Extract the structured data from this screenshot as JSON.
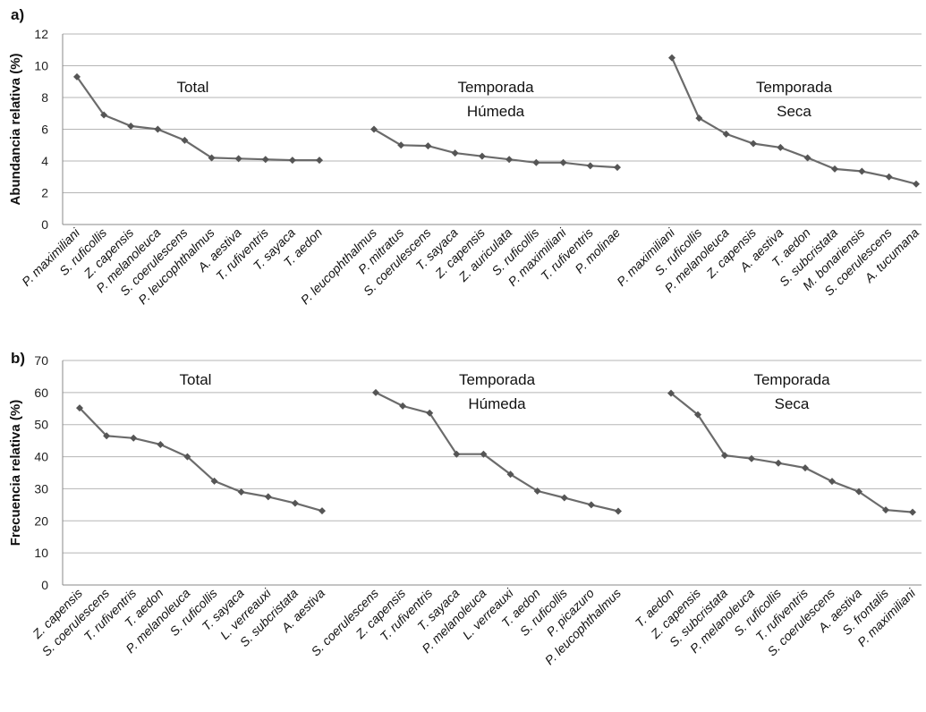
{
  "chart_data": [
    {
      "type": "line",
      "panel_letter": "a)",
      "ylabel": "Abundancia relativa (%)",
      "ylim": [
        0,
        12
      ],
      "yticks": [
        0,
        2,
        4,
        6,
        8,
        10,
        12
      ],
      "grid": true,
      "groups": [
        {
          "title_lines": [
            "Total"
          ],
          "categories": [
            "P. maximiliani",
            "S. ruficollis",
            "Z. capensis",
            "P. melanoleuca",
            "S. coerulescens",
            "P. leucophthalmus",
            "A. aestiva",
            "T. rufiventris",
            "T. sayaca",
            "T. aedon"
          ],
          "values": [
            9.3,
            6.9,
            6.2,
            6.0,
            5.3,
            4.2,
            4.15,
            4.1,
            4.05,
            4.05
          ]
        },
        {
          "title_lines": [
            "Temporada",
            "Húmeda"
          ],
          "categories": [
            "P. leucophthalmus",
            "P. mitratus",
            "S. coerulescens",
            "T. sayaca",
            "Z. capensis",
            "Z. auriculata",
            "S. ruficollis",
            "P. maximiliani",
            "T. rufiventris",
            "P. molinae"
          ],
          "values": [
            6.0,
            5.0,
            4.95,
            4.5,
            4.3,
            4.1,
            3.9,
            3.9,
            3.7,
            3.6
          ]
        },
        {
          "title_lines": [
            "Temporada",
            "Seca"
          ],
          "categories": [
            "P. maximiliani",
            "S. ruficollis",
            "P. melanoleuca",
            "Z. capensis",
            "A. aestiva",
            "T. aedon",
            "S. subcristata",
            "M. bonariensis",
            "S. coerulescens",
            "A. tucumana"
          ],
          "values": [
            10.5,
            6.7,
            5.7,
            5.1,
            4.85,
            4.2,
            3.5,
            3.35,
            3.0,
            2.55
          ]
        }
      ]
    },
    {
      "type": "line",
      "panel_letter": "b)",
      "ylabel": "Frecuencia relativa (%)",
      "ylim": [
        0,
        70
      ],
      "yticks": [
        0,
        10,
        20,
        30,
        40,
        50,
        60,
        70
      ],
      "grid": true,
      "groups": [
        {
          "title_lines": [
            "Total"
          ],
          "categories": [
            "Z. capensis",
            "S. coerulescens",
            "T. rufiventris",
            "T. aedon",
            "P. melanoleuca",
            "S. ruficollis",
            "T. sayaca",
            "L. verreauxi",
            "S. subcristata",
            "A. aestiva"
          ],
          "values": [
            55.2,
            46.5,
            45.8,
            43.8,
            40.0,
            32.4,
            29.0,
            27.5,
            25.5,
            23.1
          ]
        },
        {
          "title_lines": [
            "Temporada",
            "Húmeda"
          ],
          "categories": [
            "S. coerulescens",
            "Z. capensis",
            "T. rufiventris",
            "T. sayaca",
            "P. melanoleuca",
            "L. verreauxi",
            "T. aedon",
            "S. ruficollis",
            "P. picazuro",
            "P. leucophthalmus"
          ],
          "values": [
            60.0,
            55.8,
            53.6,
            40.8,
            40.8,
            34.5,
            29.3,
            27.2,
            25.0,
            23.0
          ]
        },
        {
          "title_lines": [
            "Temporada",
            "Seca"
          ],
          "categories": [
            "T. aedon",
            "Z. capensis",
            "S. subcristata",
            "P. melanoleuca",
            "S. ruficollis",
            "T. rufiventris",
            "S. coerulescens",
            "A. aestiva",
            "S. frontalis",
            "P. maximiliani"
          ],
          "values": [
            59.8,
            53.1,
            40.4,
            39.4,
            38.0,
            36.5,
            32.3,
            29.1,
            23.4,
            22.7
          ]
        }
      ]
    }
  ]
}
